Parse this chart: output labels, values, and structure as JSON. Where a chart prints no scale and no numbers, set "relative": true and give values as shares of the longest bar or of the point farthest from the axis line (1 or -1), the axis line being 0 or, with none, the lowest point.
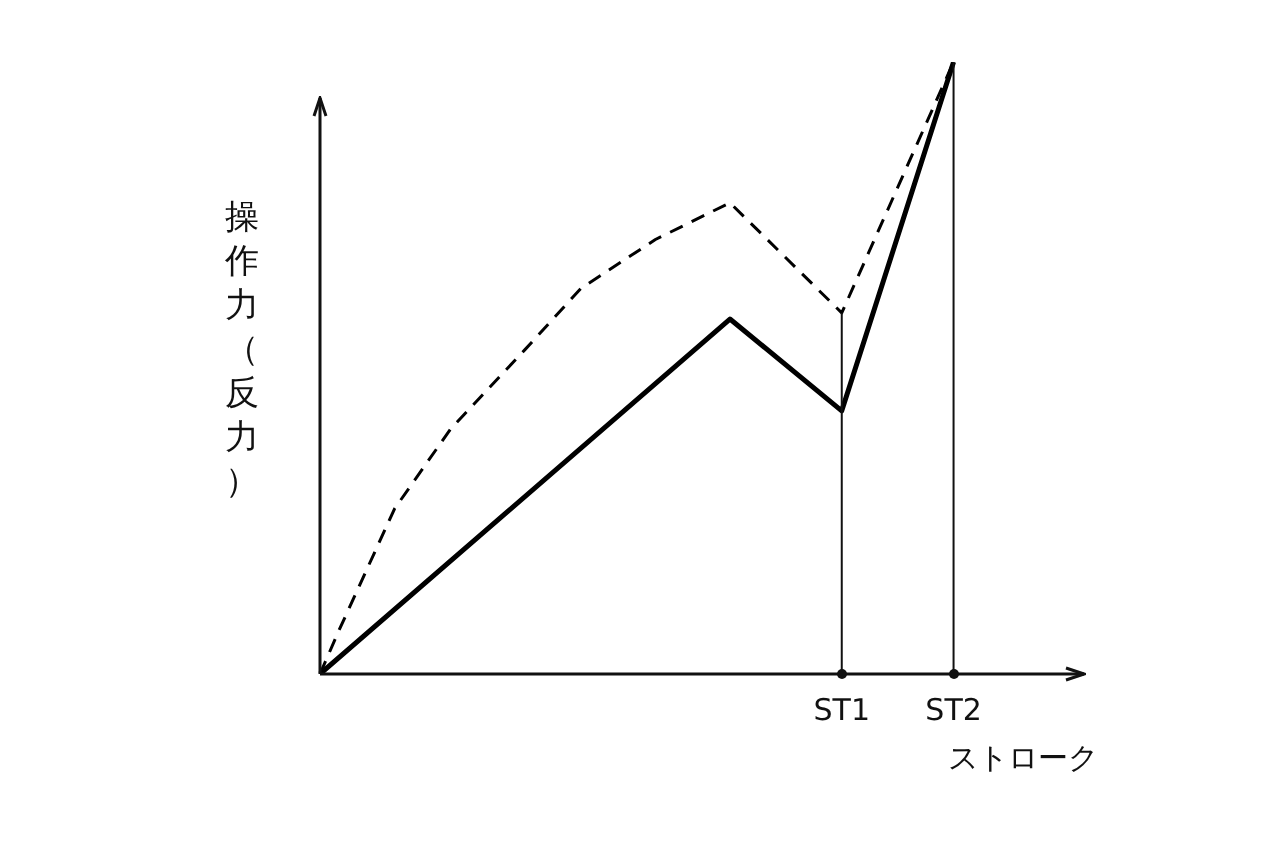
{
  "chart_data": {
    "type": "line",
    "relative": true,
    "ylabel": "操作力（反力）",
    "xlabel": "ストローク",
    "tick_labels": "x",
    "grid": false,
    "legend": false,
    "marker": "none",
    "categories": [
      null,
      null,
      null,
      null,
      null,
      null,
      null,
      null,
      null,
      null,
      null,
      null,
      null,
      null,
      null,
      null,
      null,
      null,
      null,
      null,
      null,
      null,
      null,
      null,
      null,
      null,
      null,
      null,
      "ST1",
      null,
      null,
      null,
      null,
      null,
      "ST2",
      null,
      null,
      null,
      null,
      null,
      null,
      null
    ],
    "series": [
      {
        "color": "#000000",
        "line_style": "solid",
        "values": [
          0,
          null,
          null,
          null,
          null,
          null,
          null,
          null,
          null,
          null,
          null,
          null,
          null,
          null,
          null,
          null,
          null,
          null,
          null,
          null,
          null,
          null,
          0.58,
          null,
          null,
          null,
          null,
          null,
          0.43,
          null,
          null,
          null,
          null,
          null,
          1,
          null,
          null,
          null,
          null,
          null,
          null,
          null
        ]
      },
      {
        "color": "#000000",
        "line_style": "dashed",
        "values": [
          0,
          0.07,
          null,
          null,
          0.27,
          null,
          null,
          0.4,
          null,
          null,
          null,
          0.53,
          null,
          null,
          0.63,
          null,
          null,
          null,
          0.71,
          null,
          null,
          null,
          0.77,
          null,
          null,
          null,
          null,
          null,
          0.59,
          null,
          null,
          null,
          null,
          null,
          1,
          null,
          null,
          null,
          null,
          null,
          null,
          null
        ]
      }
    ],
    "ref_lines": [
      {
        "axis": "x",
        "value": "ST1",
        "label": null
      },
      {
        "axis": "x",
        "value": "ST2",
        "label": null
      }
    ]
  }
}
